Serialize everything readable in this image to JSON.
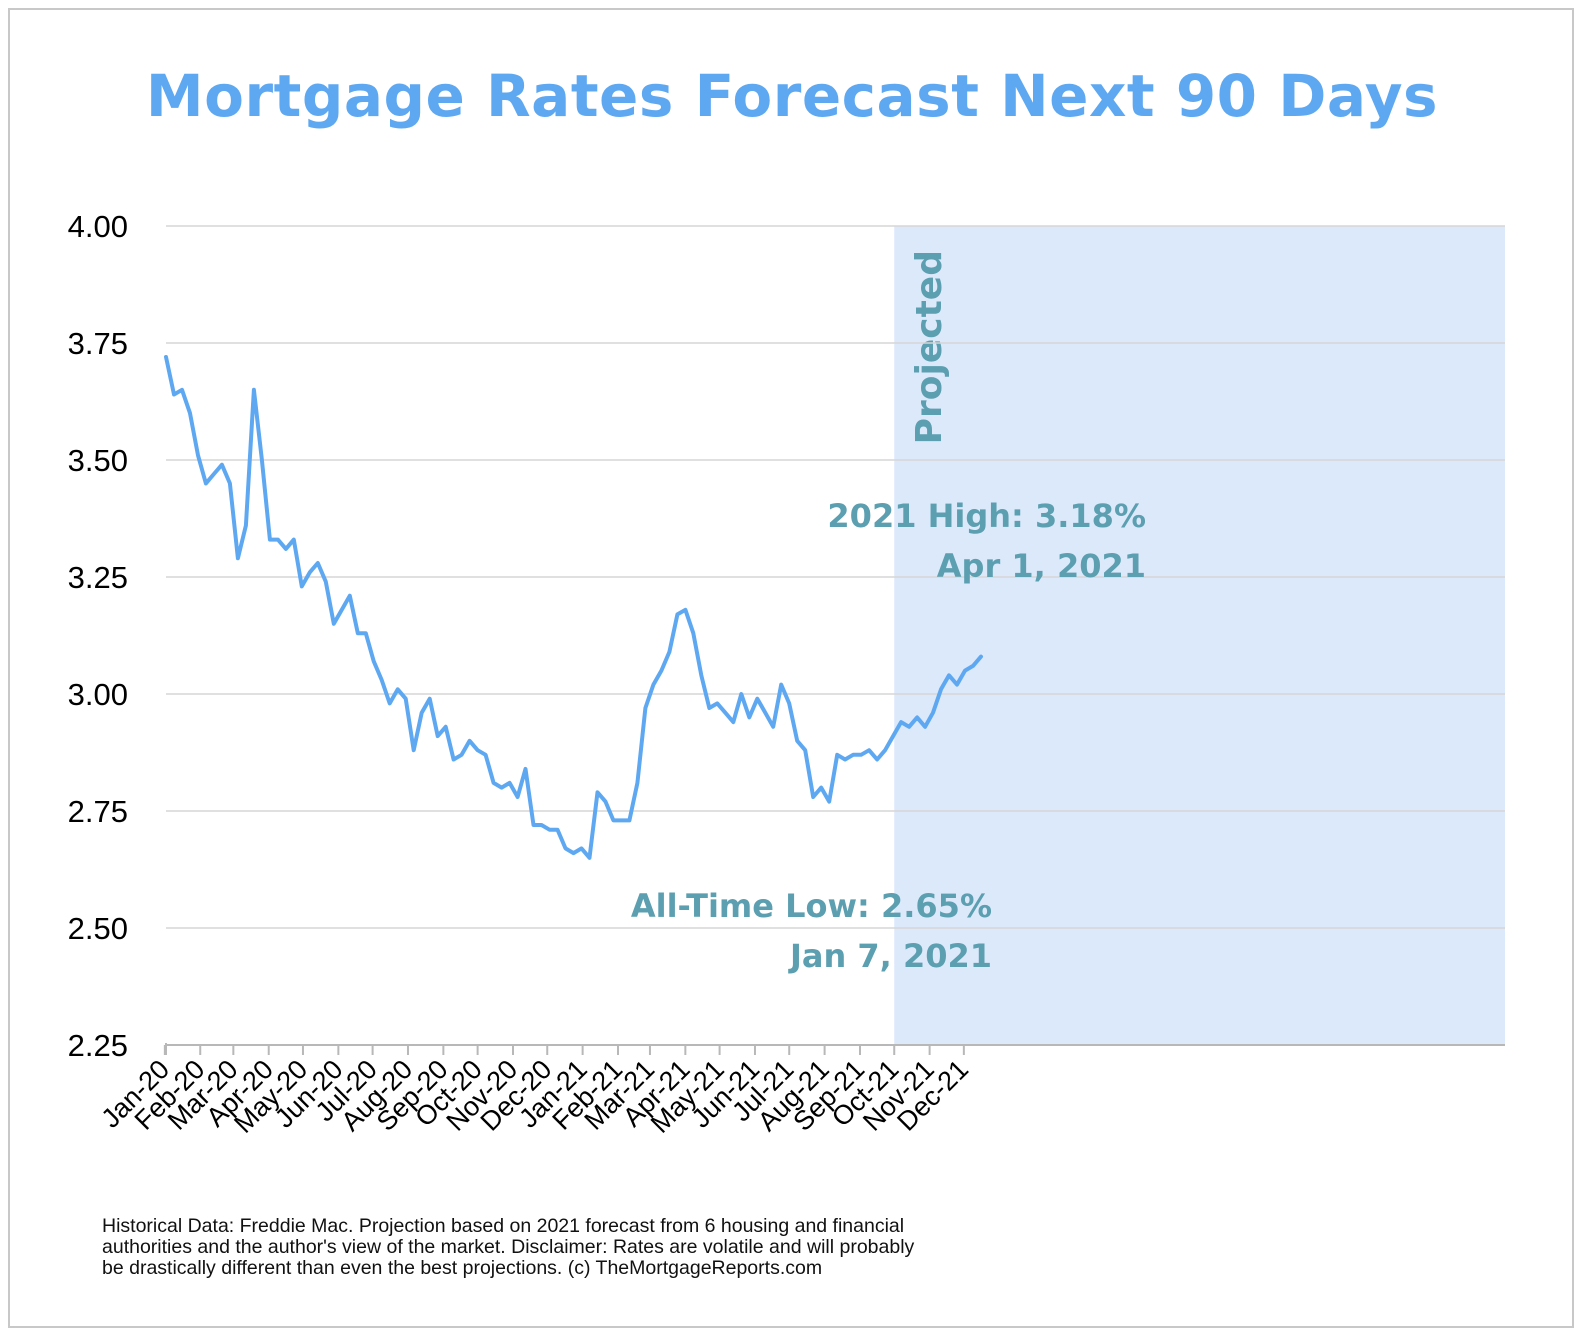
{
  "chart_data": {
    "type": "line",
    "title": "Mortgage Rates Forecast Next 90 Days",
    "xlabel": "",
    "ylabel": "",
    "ylim": [
      2.25,
      4.0
    ],
    "yticks": [
      "4.00",
      "3.75",
      "3.50",
      "3.25",
      "3.00",
      "2.75",
      "2.50",
      "2.25"
    ],
    "xtick_labels": [
      "Jan-20",
      "Feb-20",
      "Mar-20",
      "Apr-20",
      "May-20",
      "Jun-20",
      "Jul-20",
      "Aug-20",
      "Sep-20",
      "Oct-20",
      "Nov-20",
      "Dec-20",
      "Jan-21",
      "Feb-21",
      "Mar-21",
      "Apr-21",
      "May-21",
      "Jun-21",
      "Jul-21",
      "Aug-21",
      "Sep-21",
      "Oct-21",
      "Nov-21",
      "Dec-21"
    ],
    "x_start": "2020-01-02",
    "x_step_days": 7,
    "grid": true,
    "series": [
      {
        "values": [
          3.72,
          3.64,
          3.65,
          3.6,
          3.51,
          3.45,
          3.47,
          3.49,
          3.45,
          3.29,
          3.36,
          3.65,
          3.5,
          3.33,
          3.33,
          3.31,
          3.33,
          3.23,
          3.26,
          3.28,
          3.24,
          3.15,
          3.18,
          3.21,
          3.13,
          3.13,
          3.07,
          3.03,
          2.98,
          3.01,
          2.99,
          2.88,
          2.96,
          2.99,
          2.91,
          2.93,
          2.86,
          2.87,
          2.9,
          2.88,
          2.87,
          2.81,
          2.8,
          2.81,
          2.78,
          2.84,
          2.72,
          2.72,
          2.71,
          2.71,
          2.67,
          2.66,
          2.67,
          2.65,
          2.79,
          2.77,
          2.73,
          2.73,
          2.73,
          2.81,
          2.97,
          3.02,
          3.05,
          3.09,
          3.17,
          3.18,
          3.13,
          3.04,
          2.97,
          2.98,
          2.96,
          2.94,
          3.0,
          2.95,
          2.99,
          2.96,
          2.93,
          3.02,
          2.98,
          2.9,
          2.88,
          2.78,
          2.8,
          2.77,
          2.87,
          2.86,
          2.87,
          2.87,
          2.88,
          2.86,
          2.88,
          2.91,
          2.94,
          2.93,
          2.95,
          2.93,
          2.96,
          3.01,
          3.04,
          3.02,
          3.05,
          3.06,
          3.08
        ]
      }
    ],
    "projected_region": {
      "label": "Projected",
      "start": "2021-10-01"
    },
    "annotations": [
      {
        "lines": [
          "2021 High: 3.18%",
          "Apr 1, 2021"
        ],
        "date": "2021-04-01",
        "value": 3.18
      },
      {
        "lines": [
          "All-Time Low: 2.65%",
          "Jan 7, 2021"
        ],
        "date": "2021-01-07",
        "value": 2.65
      }
    ],
    "colors": {
      "line": "#5ea8f2",
      "title": "#5ea8f2",
      "annotation": "#5b9fb0",
      "projected_fill": "#dce9fb",
      "grid": "#d6d6d6",
      "axis": "#b8b8b8"
    },
    "source_note": [
      "Historical Data: Freddie Mac. Projection based on 2021 forecast from 6 housing and financial",
      "authorities and the author's view of the market. Disclaimer: Rates are volatile and will probably",
      "be drastically different than even the best projections. (c) TheMortgageReports.com"
    ]
  }
}
